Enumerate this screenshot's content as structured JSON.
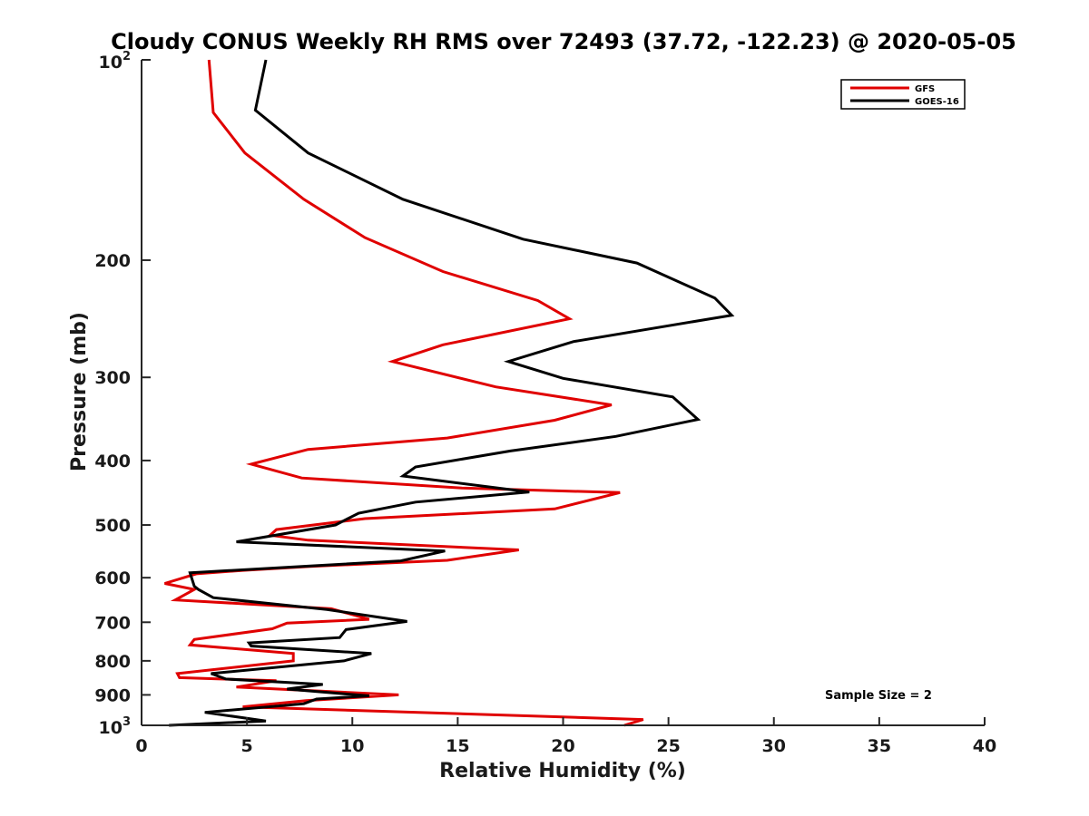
{
  "chart_data": {
    "type": "line",
    "title": "Cloudy CONUS Weekly RH RMS over 72493 (37.72, -122.23) @ 2020-05-05",
    "xlabel": "Relative Humidity (%)",
    "ylabel": "Pressure (mb)",
    "xlim": [
      0,
      40
    ],
    "ylim": [
      100,
      1000
    ],
    "y_scale": "log",
    "y_reversed": true,
    "x_ticks": [
      0,
      5,
      10,
      15,
      20,
      25,
      30,
      35,
      40
    ],
    "y_ticks": [
      {
        "value": 100,
        "label": "10",
        "sup": "2"
      },
      {
        "value": 200,
        "label": "200"
      },
      {
        "value": 300,
        "label": "300"
      },
      {
        "value": 400,
        "label": "400"
      },
      {
        "value": 500,
        "label": "500"
      },
      {
        "value": 600,
        "label": "600"
      },
      {
        "value": 700,
        "label": "700"
      },
      {
        "value": 800,
        "label": "800"
      },
      {
        "value": 900,
        "label": "900"
      },
      {
        "value": 1000,
        "label": "10",
        "sup": "3"
      }
    ],
    "grid": false,
    "legend": {
      "position": "top-right"
    },
    "annotation": "Sample Size = 2",
    "series": [
      {
        "name": "GFS",
        "color": "#e00000",
        "points": [
          [
            3.2,
            100
          ],
          [
            3.4,
            120
          ],
          [
            4.9,
            138
          ],
          [
            7.7,
            162
          ],
          [
            10.6,
            185
          ],
          [
            14.3,
            208
          ],
          [
            18.8,
            230
          ],
          [
            20.3,
            245
          ],
          [
            14.3,
            268
          ],
          [
            11.9,
            284
          ],
          [
            16.8,
            310
          ],
          [
            22.3,
            330
          ],
          [
            19.6,
            348
          ],
          [
            14.5,
            370
          ],
          [
            7.9,
            385
          ],
          [
            5.2,
            405
          ],
          [
            7.6,
            425
          ],
          [
            15.2,
            440
          ],
          [
            22.7,
            447
          ],
          [
            19.6,
            473
          ],
          [
            10.6,
            489
          ],
          [
            6.4,
            508
          ],
          [
            6.1,
            518
          ],
          [
            7.9,
            527
          ],
          [
            17.9,
            545
          ],
          [
            14.5,
            565
          ],
          [
            8.0,
            577
          ],
          [
            4.8,
            585
          ],
          [
            2.6,
            592
          ],
          [
            1.1,
            612
          ],
          [
            2.5,
            625
          ],
          [
            1.6,
            648
          ],
          [
            9.0,
            668
          ],
          [
            10.8,
            693
          ],
          [
            6.9,
            702
          ],
          [
            6.2,
            716
          ],
          [
            2.5,
            743
          ],
          [
            2.3,
            757
          ],
          [
            7.2,
            780
          ],
          [
            7.2,
            800
          ],
          [
            1.7,
            836
          ],
          [
            1.8,
            848
          ],
          [
            6.4,
            857
          ],
          [
            4.5,
            876
          ],
          [
            12.2,
            900
          ],
          [
            7.8,
            918
          ],
          [
            4.8,
            938
          ],
          [
            23.8,
            980
          ],
          [
            22.9,
            1000
          ]
        ]
      },
      {
        "name": "GOES-16",
        "color": "#000000",
        "points": [
          [
            5.9,
            100
          ],
          [
            5.4,
            119
          ],
          [
            7.9,
            138
          ],
          [
            12.4,
            162
          ],
          [
            18.1,
            186
          ],
          [
            23.5,
            202
          ],
          [
            27.2,
            228
          ],
          [
            28.0,
            242
          ],
          [
            20.5,
            265
          ],
          [
            17.4,
            284
          ],
          [
            20.0,
            301
          ],
          [
            25.2,
            321
          ],
          [
            26.4,
            347
          ],
          [
            22.5,
            368
          ],
          [
            17.5,
            387
          ],
          [
            13.0,
            409
          ],
          [
            12.4,
            422
          ],
          [
            18.4,
            446
          ],
          [
            13.0,
            462
          ],
          [
            10.3,
            480
          ],
          [
            9.2,
            500
          ],
          [
            4.5,
            530
          ],
          [
            14.4,
            547
          ],
          [
            12.3,
            566
          ],
          [
            8.0,
            576
          ],
          [
            2.3,
            590
          ],
          [
            2.5,
            618
          ],
          [
            2.7,
            625
          ],
          [
            3.4,
            643
          ],
          [
            8.8,
            670
          ],
          [
            12.6,
            698
          ],
          [
            9.7,
            718
          ],
          [
            9.4,
            738
          ],
          [
            5.1,
            752
          ],
          [
            5.2,
            760
          ],
          [
            10.9,
            780
          ],
          [
            9.6,
            800
          ],
          [
            3.3,
            836
          ],
          [
            4.0,
            852
          ],
          [
            8.6,
            868
          ],
          [
            6.9,
            882
          ],
          [
            10.8,
            903
          ],
          [
            8.3,
            913
          ],
          [
            7.7,
            928
          ],
          [
            3.0,
            956
          ],
          [
            5.9,
            985
          ],
          [
            1.3,
            1000
          ]
        ]
      }
    ]
  }
}
